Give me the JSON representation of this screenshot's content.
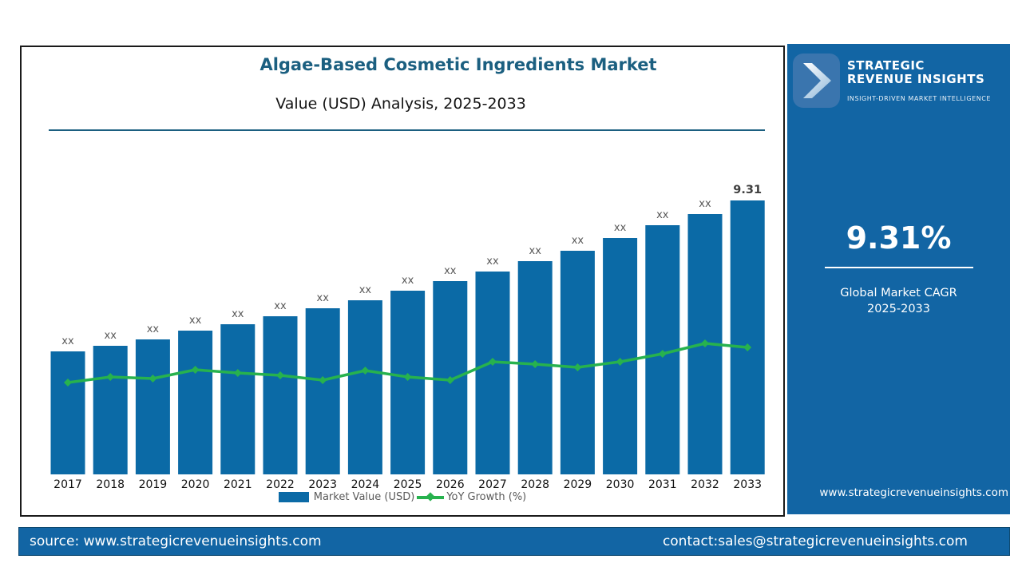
{
  "panel": {
    "title": "Algae-Based Cosmetic Ingredients Market",
    "subtitle": "Value (USD) Analysis, 2025-2033"
  },
  "chart_data": {
    "type": "combo",
    "title": "Algae-Based Cosmetic Ingredients Market",
    "subtitle": "Value (USD) Analysis, 2025-2033",
    "categories": [
      "2017",
      "2018",
      "2019",
      "2020",
      "2021",
      "2022",
      "2023",
      "2024",
      "2025",
      "2026",
      "2027",
      "2028",
      "2029",
      "2030",
      "2031",
      "2032",
      "2033"
    ],
    "series": [
      {
        "name": "Market Value (USD)",
        "type": "bar",
        "color": "#0b6aa6",
        "data_labels": [
          "xx",
          "xx",
          "xx",
          "xx",
          "xx",
          "xx",
          "xx",
          "xx",
          "xx",
          "xx",
          "xx",
          "xx",
          "xx",
          "xx",
          "xx",
          "xx",
          "9.31"
        ],
        "values_rel": [
          154,
          161,
          169,
          180,
          188,
          198,
          208,
          218,
          230,
          242,
          254,
          267,
          280,
          296,
          312,
          326,
          343
        ]
      },
      {
        "name": "YoY Growth (%)",
        "type": "line",
        "color": "#27b24e",
        "marker": "diamond",
        "values_rel": [
          115,
          122,
          120,
          131,
          127,
          124,
          118,
          130,
          122,
          118,
          141,
          138,
          134,
          141,
          151,
          164,
          159
        ]
      }
    ],
    "value_axis": "no numeric axis shown; bars labeled 'xx' placeholders, final 2033 bar labeled 9.31",
    "legend_position": "bottom-center",
    "grid": false
  },
  "sidebar": {
    "brand_line1": "STRATEGIC",
    "brand_line2": "REVENUE INSIGHTS",
    "tagline": "INSIGHT-DRIVEN MARKET INTELLIGENCE",
    "cagr_value": "9.31%",
    "cagr_label1": "Global Market CAGR",
    "cagr_label2": "2025-2033",
    "website": "www.strategicrevenueinsights.com"
  },
  "footer": {
    "source": "source: www.strategicrevenueinsights.com",
    "contact": "contact:sales@strategicrevenueinsights.com"
  },
  "colors": {
    "panel_border": "#1a1a1a",
    "title_teal": "#1b5f80",
    "bar_blue": "#0b6aa6",
    "line_green": "#27b24e",
    "brand_blue": "#1265a4",
    "logo_box_blue": "#3a75ae",
    "bar_label_grey": "#595959",
    "final_label_grey": "#3f3f3f"
  }
}
